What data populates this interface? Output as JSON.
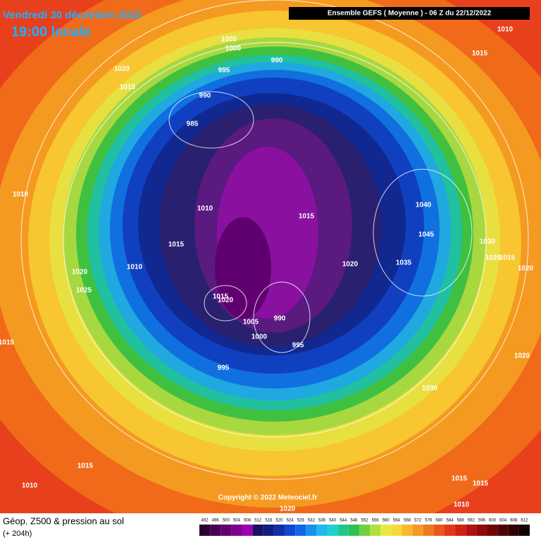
{
  "header": {
    "date": "Vendredi 30 décembre 2022",
    "time": "19:00 locale",
    "model": "Ensemble GEFS  ( Moyenne )  -  06 Z du 22/12/2022"
  },
  "map": {
    "isobar_labels": [
      "1010",
      "1015",
      "1005",
      "1000",
      "990",
      "1020",
      "1015",
      "995",
      "990",
      "985",
      "1010",
      "1010",
      "1015",
      "1040",
      "1045",
      "1030",
      "1025",
      "1015",
      "1020",
      "1015",
      "1020",
      "1010",
      "1020",
      "1035",
      "1025",
      "1015",
      "1020",
      "990",
      "1005",
      "1000",
      "995",
      "1015",
      "995",
      "1020",
      "1030",
      "1015",
      "1010",
      "1015",
      "1015",
      "1010",
      "1020"
    ],
    "copyright": "Copyright © 2022 Meteociel.fr"
  },
  "footer": {
    "title": "Géop. Z500 & pression au sol",
    "lead": "(+ 204h)",
    "scale": [
      492,
      496,
      500,
      504,
      508,
      512,
      516,
      520,
      524,
      528,
      532,
      536,
      540,
      544,
      548,
      552,
      556,
      560,
      564,
      568,
      572,
      576,
      580,
      584,
      588,
      592,
      596,
      600,
      604,
      608,
      612
    ],
    "scale_colors": [
      "#2a0030",
      "#46004f",
      "#620070",
      "#7e0090",
      "#9a00b0",
      "#1a1060",
      "#101c80",
      "#1030a8",
      "#1048d0",
      "#1068e8",
      "#1890f0",
      "#20b8f0",
      "#20d0d0",
      "#20c890",
      "#30c050",
      "#70d040",
      "#b0e040",
      "#e8e840",
      "#f8d838",
      "#f8b830",
      "#f89828",
      "#f07820",
      "#e85818",
      "#e03818",
      "#d02010",
      "#b01010",
      "#900808",
      "#700404",
      "#500202",
      "#300000",
      "#100000"
    ]
  }
}
